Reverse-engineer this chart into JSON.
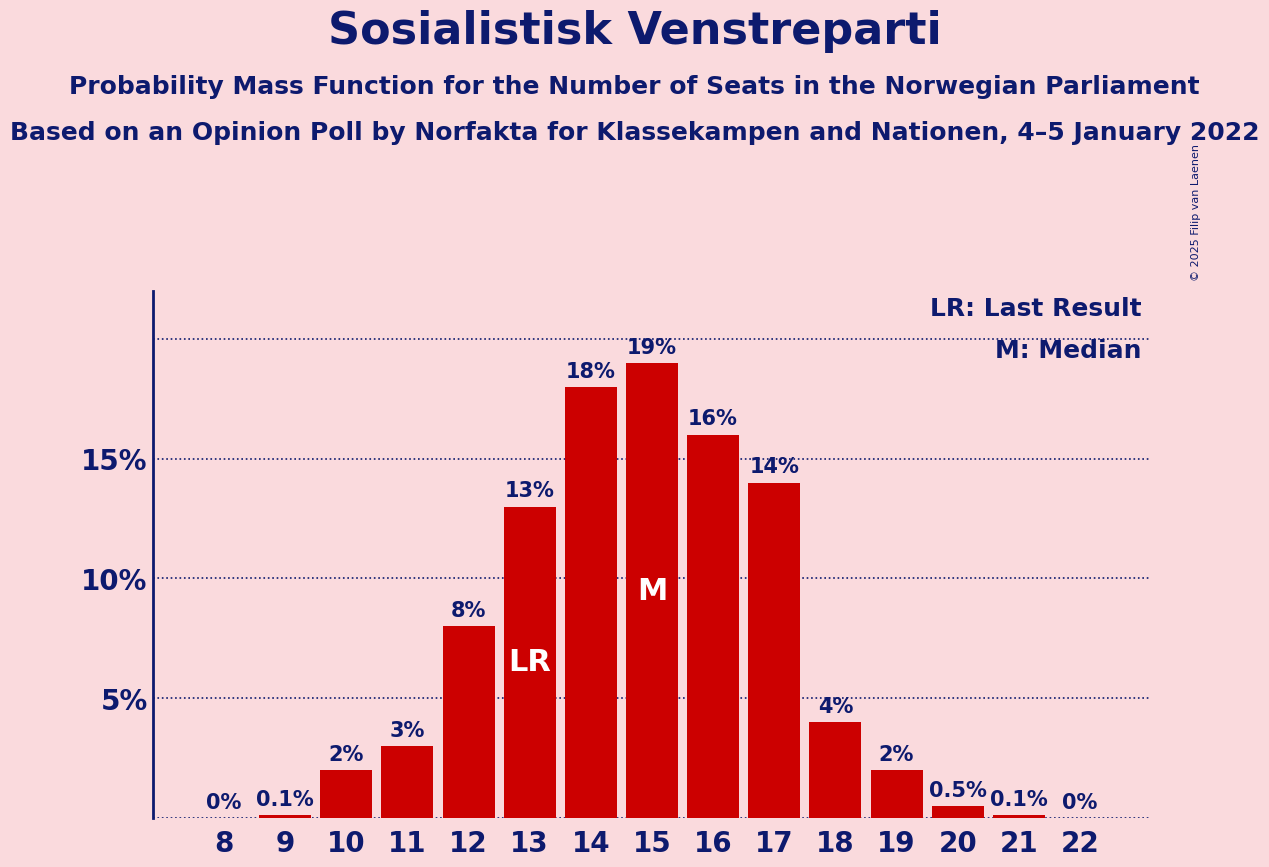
{
  "title": "Sosialistisk Venstreparti",
  "subtitle1": "Probability Mass Function for the Number of Seats in the Norwegian Parliament",
  "subtitle2": "Based on an Opinion Poll by Norfakta for Klassekampen and Nationen, 4–5 January 2022",
  "copyright": "© 2025 Filip van Laenen",
  "seats": [
    8,
    9,
    10,
    11,
    12,
    13,
    14,
    15,
    16,
    17,
    18,
    19,
    20,
    21,
    22
  ],
  "probabilities": [
    0.0,
    0.1,
    2.0,
    3.0,
    8.0,
    13.0,
    18.0,
    19.0,
    16.0,
    14.0,
    4.0,
    2.0,
    0.5,
    0.1,
    0.0
  ],
  "bar_color": "#cc0000",
  "bg_color": "#fadadd",
  "text_color": "#0d1a6e",
  "lr_seat": 13,
  "median_seat": 15,
  "ylim": [
    0,
    22
  ],
  "yticks": [
    0,
    5,
    10,
    15,
    20
  ],
  "ytick_labels": [
    "",
    "5%",
    "10%",
    "15%",
    ""
  ],
  "legend_lr": "LR: Last Result",
  "legend_m": "M: Median",
  "title_fontsize": 32,
  "subtitle_fontsize": 18,
  "tick_fontsize": 20,
  "legend_fontsize": 18,
  "bar_label_fontsize": 15,
  "inside_label_fontsize": 22,
  "copyright_fontsize": 8
}
